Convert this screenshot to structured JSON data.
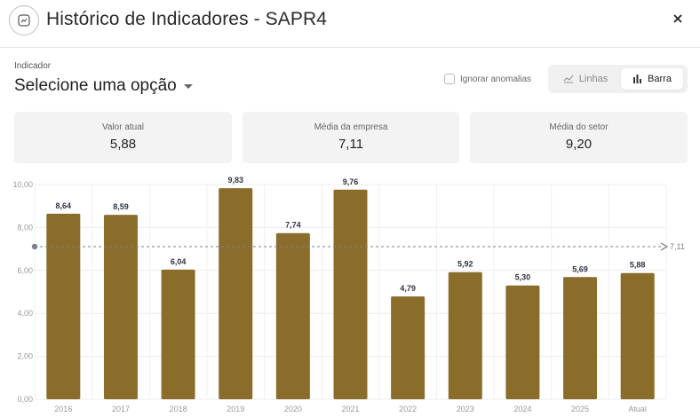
{
  "header": {
    "title": "Histórico de Indicadores - SAPR4",
    "icon": "chart-icon",
    "close_label": "×"
  },
  "controls": {
    "indicator_label": "Indicador",
    "indicator_value": "Selecione uma opção",
    "ignore_anomalies_label": "Ignorar anomalias",
    "ignore_anomalies_checked": false,
    "view_toggle": {
      "lines_label": "Linhas",
      "bars_label": "Barra",
      "selected": "bars"
    }
  },
  "cards": [
    {
      "label": "Valor atual",
      "value": "5,88"
    },
    {
      "label": "Média da empresa",
      "value": "7,11"
    },
    {
      "label": "Média do setor",
      "value": "9,20"
    }
  ],
  "chart_data": {
    "type": "bar",
    "categories": [
      "2016",
      "2017",
      "2018",
      "2019",
      "2020",
      "2021",
      "2022",
      "2023",
      "2024",
      "2025",
      "Atual"
    ],
    "values": [
      8.64,
      8.59,
      6.04,
      9.83,
      7.74,
      9.76,
      4.79,
      5.92,
      5.3,
      5.69,
      5.88
    ],
    "value_labels": [
      "8,64",
      "8,59",
      "6,04",
      "9,83",
      "7,74",
      "9,76",
      "4,79",
      "5,92",
      "5,30",
      "5,69",
      "5,88"
    ],
    "ylim": [
      0,
      10
    ],
    "yticks": [
      0,
      2,
      4,
      6,
      8,
      10
    ],
    "ytick_labels": [
      "0,00",
      "2,00",
      "4,00",
      "6,00",
      "8,00",
      "10,00"
    ],
    "reference_line": {
      "value": 7.11,
      "label": "7,11"
    },
    "bar_color": "#8a6d2a",
    "grid": true,
    "legend": false
  }
}
